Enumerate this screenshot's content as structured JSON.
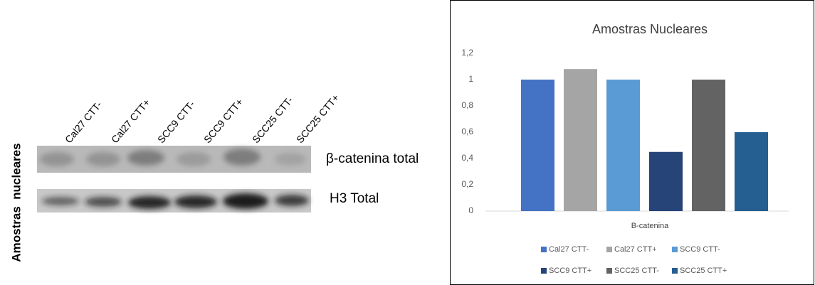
{
  "blot": {
    "side_label": "Amostras  nucleares",
    "lanes": [
      "Cal27 CTT-",
      "Cal27 CTT+",
      "SCC9 CTT-",
      "SCC9 CTT+",
      "SCC25 CTT-",
      "SCC25 CTT+"
    ],
    "rows": [
      "β-catenina total",
      "H3 Total"
    ]
  },
  "chart_data": {
    "type": "bar",
    "title": "Amostras Nucleares",
    "xlabel": "B-catenina",
    "series": [
      {
        "name": "Cal27 CTT-",
        "color": "#4472c4",
        "values": [
          1
        ]
      },
      {
        "name": "Cal27 CTT+",
        "color": "#a5a5a5",
        "values": [
          1.08
        ]
      },
      {
        "name": "SCC9 CTT-",
        "color": "#5b9bd5",
        "values": [
          1
        ]
      },
      {
        "name": "SCC9 CTT+",
        "color": "#264478",
        "values": [
          0.45
        ]
      },
      {
        "name": "SCC25 CTT-",
        "color": "#636363",
        "values": [
          1
        ]
      },
      {
        "name": "SCC25 CTT+",
        "color": "#255e91",
        "values": [
          0.6
        ]
      }
    ],
    "ylim": [
      0,
      1.2
    ],
    "yticks": [
      0,
      {
        "value": 0.2,
        "label": "0,2"
      },
      {
        "value": 0.4,
        "label": "0,4"
      },
      {
        "value": 0.6,
        "label": "0,6"
      },
      {
        "value": 0.8,
        "label": "0,8"
      },
      1,
      {
        "value": 1.2,
        "label": "1,2"
      }
    ],
    "legend": "bottom"
  }
}
